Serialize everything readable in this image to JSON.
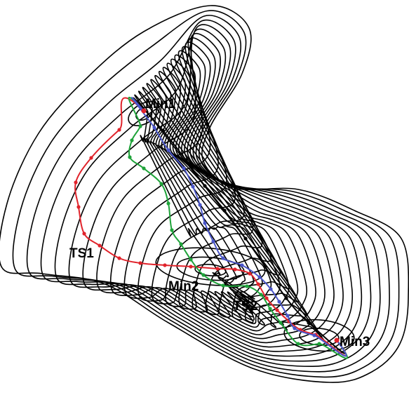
{
  "labels": {
    "min1": "Min1",
    "ts1": "TS1",
    "min2": "Min2",
    "ts2": "TS2",
    "min3": "Min3"
  },
  "path_colors": {
    "straight": "#000000",
    "red": "#e0232b",
    "green": "#1fa33a",
    "blue": "#4a56c8"
  }
}
